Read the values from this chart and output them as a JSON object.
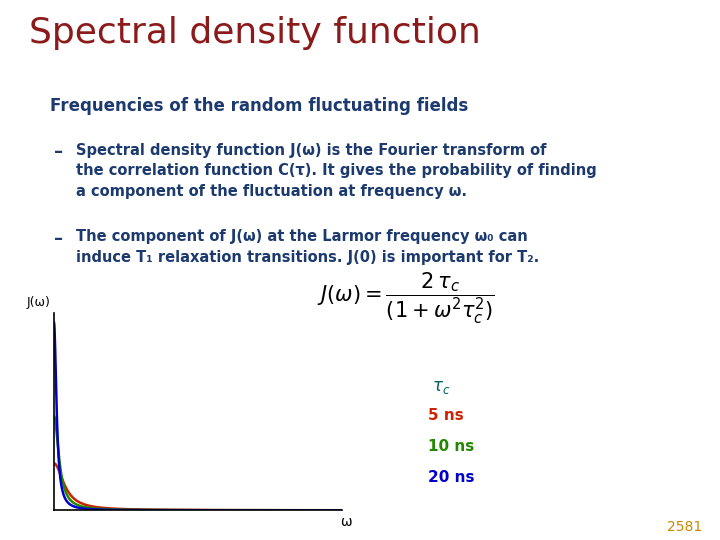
{
  "title": "Spectral density function",
  "title_color": "#8B1A1A",
  "subtitle": "Frequencies of the random fluctuating fields",
  "subtitle_color": "#1C3A6E",
  "bullet_color": "#1C3A6E",
  "bg_color": "#ffffff",
  "tau_values_ns": [
    5,
    10,
    20
  ],
  "line_colors": [
    "#cc2200",
    "#228800",
    "#0000cc"
  ],
  "line_labels": [
    "5 ns",
    "10 ns",
    "20 ns"
  ],
  "legend_tau_color": "#006060",
  "page_number": "2581",
  "page_number_color": "#cc8800",
  "omega_points": 1000,
  "omega_max_display": 5.0
}
